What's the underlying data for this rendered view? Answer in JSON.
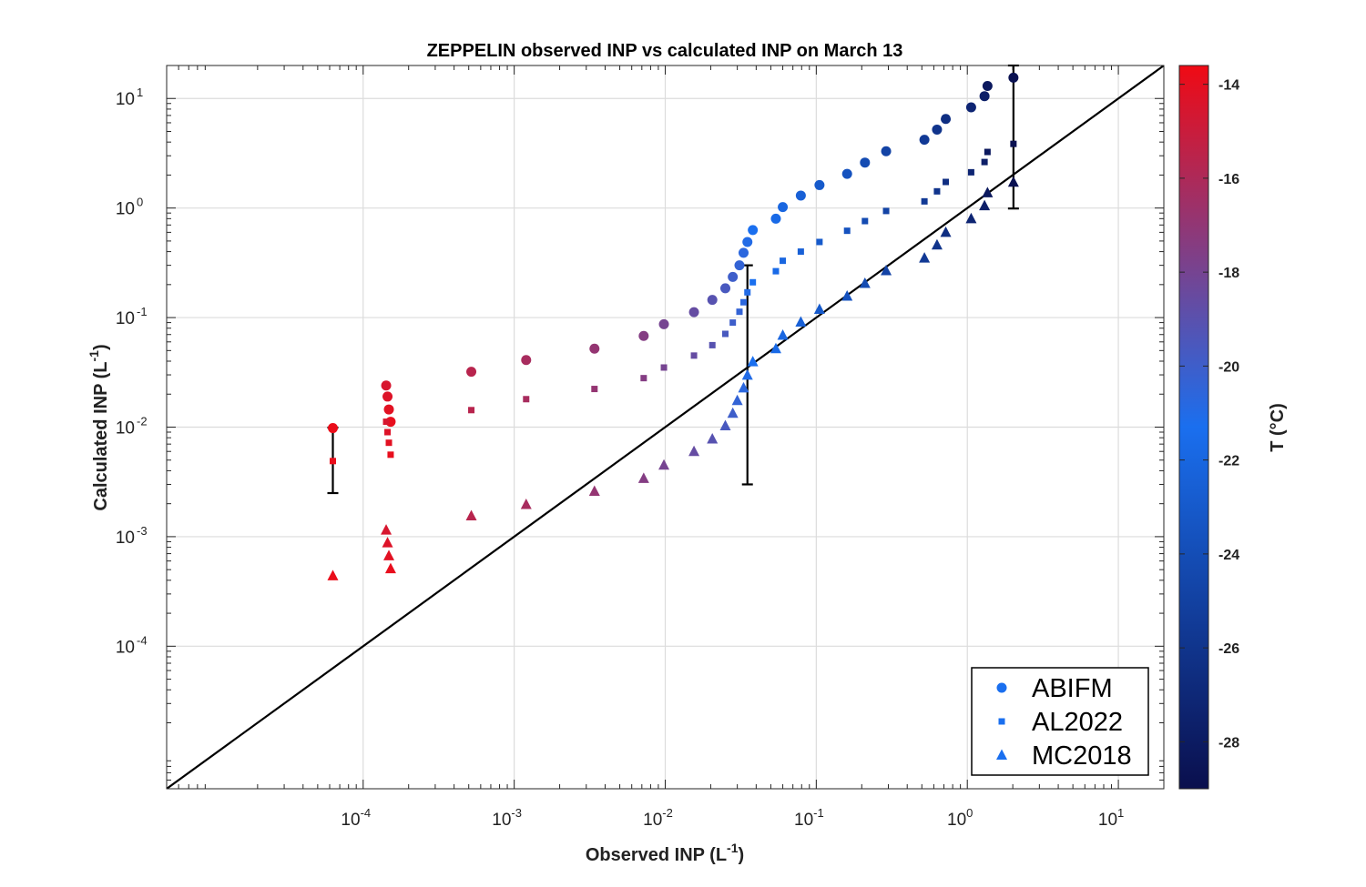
{
  "chart_data": {
    "type": "scatter",
    "title": "ZEPPELIN observed INP vs calculated INP on March 13",
    "xlabel": "Observed INP (L",
    "xlabel_exp": "-1",
    "xlabel_end": ")",
    "ylabel": "Calculated INP (L",
    "ylabel_exp": "-1",
    "ylabel_end": ")",
    "xscale": "log",
    "yscale": "log",
    "xlim": [
      5e-06,
      20
    ],
    "ylim": [
      5e-06,
      20
    ],
    "x_ticks": [
      {
        "base": "10",
        "exp": "-4",
        "value": 0.0001
      },
      {
        "base": "10",
        "exp": "-3",
        "value": 0.001
      },
      {
        "base": "10",
        "exp": "-2",
        "value": 0.01
      },
      {
        "base": "10",
        "exp": "-1",
        "value": 0.1
      },
      {
        "base": "10",
        "exp": "0",
        "value": 1
      },
      {
        "base": "10",
        "exp": "1",
        "value": 10
      }
    ],
    "y_ticks": [
      {
        "base": "10",
        "exp": "-4",
        "value": 0.0001
      },
      {
        "base": "10",
        "exp": "-3",
        "value": 0.001
      },
      {
        "base": "10",
        "exp": "-2",
        "value": 0.01
      },
      {
        "base": "10",
        "exp": "-1",
        "value": 0.1
      },
      {
        "base": "10",
        "exp": "0",
        "value": 1
      },
      {
        "base": "10",
        "exp": "1",
        "value": 10
      }
    ],
    "grid": true,
    "reference_line": "1:1",
    "legend_position": "bottom-right",
    "colorbar": {
      "label": "T (°C)",
      "range": [
        -29,
        -13.6
      ],
      "ticks": [
        -14,
        -16,
        -18,
        -20,
        -22,
        -24,
        -26,
        -28
      ],
      "colors": {
        "cold": "#0a0f4d",
        "mid": "#1a6fef",
        "warm": "#f00a14"
      }
    },
    "series": [
      {
        "name": "ABIFM",
        "marker": "circle",
        "points": [
          {
            "x": 6.3e-05,
            "y": 0.0098,
            "t": -13.8
          },
          {
            "x": 0.000142,
            "y": 0.024,
            "t": -14.5
          },
          {
            "x": 0.000145,
            "y": 0.019,
            "t": -14.3
          },
          {
            "x": 0.000148,
            "y": 0.0145,
            "t": -14.1
          },
          {
            "x": 0.000152,
            "y": 0.0112,
            "t": -13.9
          },
          {
            "x": 0.00052,
            "y": 0.032,
            "t": -15.6
          },
          {
            "x": 0.0012,
            "y": 0.041,
            "t": -16.2
          },
          {
            "x": 0.0034,
            "y": 0.052,
            "t": -16.9
          },
          {
            "x": 0.0072,
            "y": 0.068,
            "t": -17.5
          },
          {
            "x": 0.0098,
            "y": 0.087,
            "t": -18.0
          },
          {
            "x": 0.0155,
            "y": 0.112,
            "t": -18.6
          },
          {
            "x": 0.0205,
            "y": 0.145,
            "t": -19.1
          },
          {
            "x": 0.025,
            "y": 0.185,
            "t": -19.6
          },
          {
            "x": 0.028,
            "y": 0.235,
            "t": -20.0
          },
          {
            "x": 0.031,
            "y": 0.3,
            "t": -20.4
          },
          {
            "x": 0.033,
            "y": 0.39,
            "t": -20.7
          },
          {
            "x": 0.035,
            "y": 0.49,
            "t": -21.0
          },
          {
            "x": 0.038,
            "y": 0.63,
            "t": -21.3
          },
          {
            "x": 0.054,
            "y": 0.8,
            "t": -21.7
          },
          {
            "x": 0.06,
            "y": 1.02,
            "t": -22.0
          },
          {
            "x": 0.079,
            "y": 1.3,
            "t": -22.5
          },
          {
            "x": 0.105,
            "y": 1.62,
            "t": -23.0
          },
          {
            "x": 0.16,
            "y": 2.05,
            "t": -23.6
          },
          {
            "x": 0.21,
            "y": 2.6,
            "t": -24.2
          },
          {
            "x": 0.29,
            "y": 3.3,
            "t": -24.8
          },
          {
            "x": 0.52,
            "y": 4.2,
            "t": -25.6
          },
          {
            "x": 0.63,
            "y": 5.2,
            "t": -26.0
          },
          {
            "x": 0.72,
            "y": 6.5,
            "t": -26.5
          },
          {
            "x": 1.06,
            "y": 8.3,
            "t": -27.2
          },
          {
            "x": 1.3,
            "y": 10.5,
            "t": -27.7
          },
          {
            "x": 1.36,
            "y": 13.0,
            "t": -28.2
          },
          {
            "x": 2.02,
            "y": 15.5,
            "t": -28.8
          }
        ]
      },
      {
        "name": "AL2022",
        "marker": "square",
        "points": [
          {
            "x": 6.3e-05,
            "y": 0.0049,
            "t": -13.8
          },
          {
            "x": 0.000142,
            "y": 0.0112,
            "t": -14.5
          },
          {
            "x": 0.000145,
            "y": 0.009,
            "t": -14.3
          },
          {
            "x": 0.000148,
            "y": 0.0072,
            "t": -14.1
          },
          {
            "x": 0.000152,
            "y": 0.0056,
            "t": -13.9
          },
          {
            "x": 0.00052,
            "y": 0.0143,
            "t": -15.6
          },
          {
            "x": 0.0012,
            "y": 0.018,
            "t": -16.2
          },
          {
            "x": 0.0034,
            "y": 0.0223,
            "t": -16.9
          },
          {
            "x": 0.0072,
            "y": 0.028,
            "t": -17.5
          },
          {
            "x": 0.0098,
            "y": 0.035,
            "t": -18.0
          },
          {
            "x": 0.0155,
            "y": 0.045,
            "t": -18.6
          },
          {
            "x": 0.0205,
            "y": 0.056,
            "t": -19.1
          },
          {
            "x": 0.025,
            "y": 0.071,
            "t": -19.6
          },
          {
            "x": 0.028,
            "y": 0.09,
            "t": -20.0
          },
          {
            "x": 0.031,
            "y": 0.113,
            "t": -20.4
          },
          {
            "x": 0.033,
            "y": 0.138,
            "t": -20.7
          },
          {
            "x": 0.035,
            "y": 0.17,
            "t": -21.0
          },
          {
            "x": 0.038,
            "y": 0.21,
            "t": -21.3
          },
          {
            "x": 0.054,
            "y": 0.265,
            "t": -21.7
          },
          {
            "x": 0.06,
            "y": 0.33,
            "t": -22.0
          },
          {
            "x": 0.079,
            "y": 0.4,
            "t": -22.5
          },
          {
            "x": 0.105,
            "y": 0.49,
            "t": -23.0
          },
          {
            "x": 0.16,
            "y": 0.62,
            "t": -23.6
          },
          {
            "x": 0.21,
            "y": 0.76,
            "t": -24.2
          },
          {
            "x": 0.29,
            "y": 0.94,
            "t": -24.8
          },
          {
            "x": 0.52,
            "y": 1.15,
            "t": -25.6
          },
          {
            "x": 0.63,
            "y": 1.42,
            "t": -26.0
          },
          {
            "x": 0.72,
            "y": 1.73,
            "t": -26.5
          },
          {
            "x": 1.06,
            "y": 2.12,
            "t": -27.2
          },
          {
            "x": 1.3,
            "y": 2.63,
            "t": -27.7
          },
          {
            "x": 1.36,
            "y": 3.25,
            "t": -28.2
          },
          {
            "x": 2.02,
            "y": 3.85,
            "t": -28.8
          }
        ]
      },
      {
        "name": "MC2018",
        "marker": "triangle",
        "points": [
          {
            "x": 6.3e-05,
            "y": 0.00044,
            "t": -13.8
          },
          {
            "x": 0.000142,
            "y": 0.00115,
            "t": -14.5
          },
          {
            "x": 0.000145,
            "y": 0.00088,
            "t": -14.3
          },
          {
            "x": 0.000148,
            "y": 0.00067,
            "t": -14.1
          },
          {
            "x": 0.000152,
            "y": 0.00051,
            "t": -13.9
          },
          {
            "x": 0.00052,
            "y": 0.00155,
            "t": -15.6
          },
          {
            "x": 0.0012,
            "y": 0.00197,
            "t": -16.2
          },
          {
            "x": 0.0034,
            "y": 0.0026,
            "t": -16.9
          },
          {
            "x": 0.0072,
            "y": 0.0034,
            "t": -17.5
          },
          {
            "x": 0.0098,
            "y": 0.0045,
            "t": -18.0
          },
          {
            "x": 0.0155,
            "y": 0.006,
            "t": -18.6
          },
          {
            "x": 0.0205,
            "y": 0.0078,
            "t": -19.1
          },
          {
            "x": 0.025,
            "y": 0.0103,
            "t": -19.6
          },
          {
            "x": 0.028,
            "y": 0.0134,
            "t": -20.0
          },
          {
            "x": 0.03,
            "y": 0.0175,
            "t": -20.4
          },
          {
            "x": 0.033,
            "y": 0.0228,
            "t": -20.7
          },
          {
            "x": 0.035,
            "y": 0.0298,
            "t": -21.0
          },
          {
            "x": 0.038,
            "y": 0.0395,
            "t": -21.3
          },
          {
            "x": 0.054,
            "y": 0.052,
            "t": -21.7
          },
          {
            "x": 0.06,
            "y": 0.069,
            "t": -22.0
          },
          {
            "x": 0.079,
            "y": 0.091,
            "t": -22.5
          },
          {
            "x": 0.105,
            "y": 0.119,
            "t": -23.0
          },
          {
            "x": 0.16,
            "y": 0.157,
            "t": -23.6
          },
          {
            "x": 0.21,
            "y": 0.205,
            "t": -24.2
          },
          {
            "x": 0.29,
            "y": 0.268,
            "t": -24.8
          },
          {
            "x": 0.52,
            "y": 0.35,
            "t": -25.6
          },
          {
            "x": 0.63,
            "y": 0.46,
            "t": -26.0
          },
          {
            "x": 0.72,
            "y": 0.6,
            "t": -26.5
          },
          {
            "x": 1.06,
            "y": 0.8,
            "t": -27.2
          },
          {
            "x": 1.3,
            "y": 1.05,
            "t": -27.7
          },
          {
            "x": 1.36,
            "y": 1.38,
            "t": -28.2
          },
          {
            "x": 2.02,
            "y": 1.72,
            "t": -28.8
          }
        ]
      }
    ],
    "error_bars": [
      {
        "x": 6.3e-05,
        "y_low": 0.0025,
        "y_high": 0.0099
      },
      {
        "x": 0.035,
        "y_low": 0.003,
        "y_high": 0.3
      },
      {
        "x": 2.02,
        "y_low": 0.99,
        "y_high": 20
      }
    ]
  }
}
